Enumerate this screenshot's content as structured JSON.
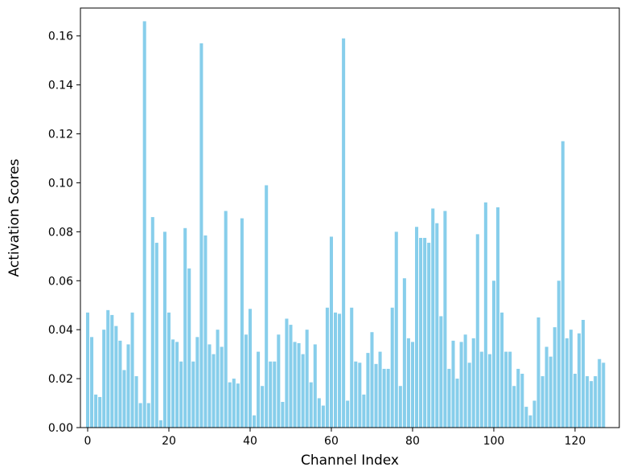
{
  "figure": {
    "background": "#ffffff",
    "spine_color": "#000000",
    "tick_color": "#000000"
  },
  "chart_data": {
    "type": "bar",
    "title": "",
    "xlabel": "Channel Index",
    "ylabel": "Activation Scores",
    "bar_color": "#87ceeb",
    "grid": false,
    "legend": null,
    "xlim": [
      -1.78,
      130.9
    ],
    "ylim": [
      0,
      0.1714
    ],
    "xticks": [
      0,
      20,
      40,
      60,
      80,
      100,
      120
    ],
    "yticks": [
      0.0,
      0.02,
      0.04,
      0.06,
      0.08,
      0.1,
      0.12,
      0.14,
      0.16
    ],
    "categories_note": "x value = channel index 0..127, equal to array position",
    "values": [
      0.047,
      0.037,
      0.0135,
      0.0125,
      0.04,
      0.048,
      0.046,
      0.0415,
      0.0355,
      0.0235,
      0.034,
      0.047,
      0.021,
      0.01,
      0.166,
      0.01,
      0.086,
      0.0755,
      0.003,
      0.08,
      0.047,
      0.036,
      0.035,
      0.027,
      0.0815,
      0.065,
      0.027,
      0.037,
      0.157,
      0.0785,
      0.034,
      0.03,
      0.04,
      0.033,
      0.0885,
      0.0185,
      0.02,
      0.018,
      0.0855,
      0.038,
      0.0485,
      0.005,
      0.031,
      0.017,
      0.099,
      0.027,
      0.027,
      0.038,
      0.0105,
      0.0445,
      0.042,
      0.035,
      0.0345,
      0.03,
      0.04,
      0.0185,
      0.034,
      0.012,
      0.009,
      0.049,
      0.078,
      0.047,
      0.0465,
      0.159,
      0.011,
      0.049,
      0.027,
      0.0265,
      0.0135,
      0.0305,
      0.039,
      0.026,
      0.031,
      0.024,
      0.024,
      0.049,
      0.08,
      0.017,
      0.061,
      0.0365,
      0.035,
      0.082,
      0.0775,
      0.0775,
      0.0755,
      0.0895,
      0.0835,
      0.0455,
      0.0885,
      0.024,
      0.0355,
      0.02,
      0.035,
      0.038,
      0.0265,
      0.0365,
      0.079,
      0.031,
      0.092,
      0.03,
      0.06,
      0.09,
      0.047,
      0.031,
      0.031,
      0.017,
      0.024,
      0.022,
      0.0085,
      0.005,
      0.011,
      0.045,
      0.021,
      0.033,
      0.029,
      0.041,
      0.06,
      0.117,
      0.0365,
      0.04,
      0.022,
      0.0385,
      0.044,
      0.021,
      0.019,
      0.021,
      0.028,
      0.0265
    ]
  }
}
